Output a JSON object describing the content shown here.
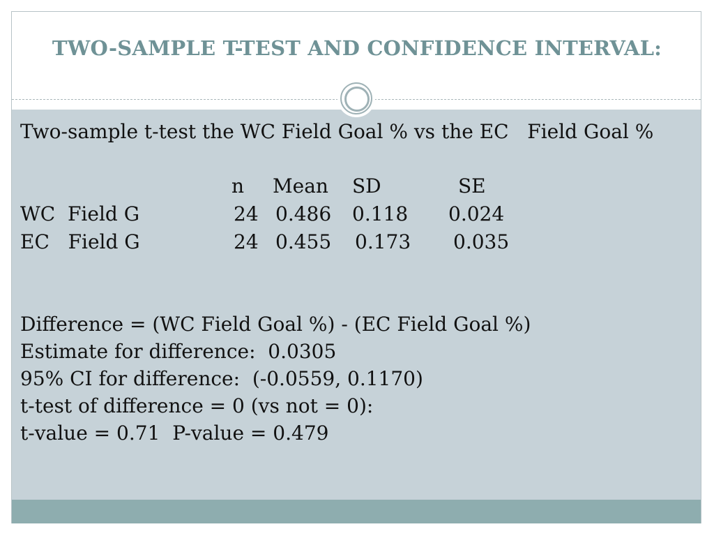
{
  "slide": {
    "title": "TWO-SAMPLE T-TEST AND CONFIDENCE INTERVAL:",
    "heading": "Two-sample t-test the WC Field Goal % vs the EC   Field Goal %",
    "table": {
      "headers": [
        "n",
        "Mean",
        "SD",
        "SE"
      ],
      "rows": [
        {
          "label": "WC  Field G",
          "n": "24",
          "mean": "0.486",
          "sd": "0.118",
          "se": "0.024"
        },
        {
          "label": "EC   Field G",
          "n": "24",
          "mean": "0.455",
          "sd": "0.173",
          "se": "0.035"
        }
      ]
    },
    "results": [
      "Difference = (WC Field Goal %) - (EC Field Goal %)",
      "Estimate for difference:  0.0305",
      "95% CI for difference:  (-0.0559, 0.1170)",
      "t-test of difference = 0 (vs not = 0):",
      "t-value = 0.71  P-value = 0.479"
    ]
  },
  "colors": {
    "title": "#6f9296",
    "panel": "#c6d2d8",
    "footer": "#8eadaf",
    "ornament": "#9fb2b6"
  },
  "icons": {
    "ornament": "double-circle-ornament"
  }
}
